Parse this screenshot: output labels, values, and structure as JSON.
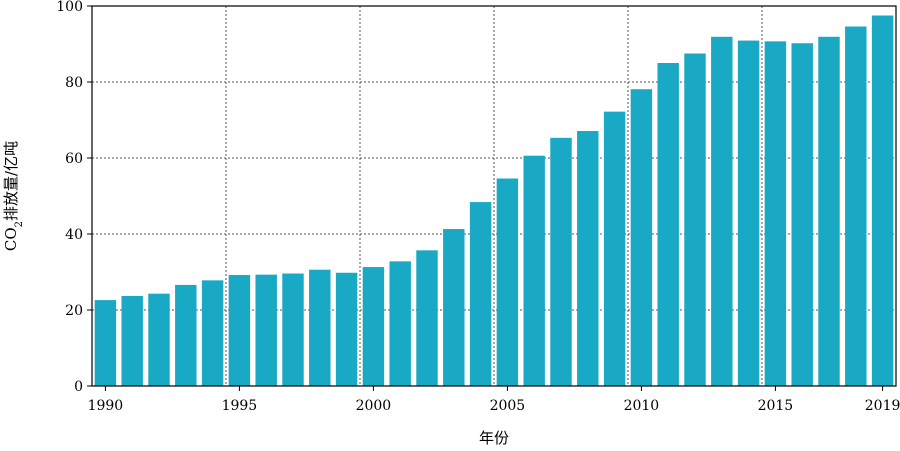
{
  "chart_data": {
    "type": "bar",
    "title": "",
    "xlabel": "年份",
    "ylabel_parts": {
      "pre": "CO",
      "sub": "2",
      "post": "排放量/亿吨"
    },
    "ylim": [
      0,
      100
    ],
    "yticks": [
      0,
      20,
      40,
      60,
      80,
      100
    ],
    "xticks": [
      "1990",
      "1995",
      "2000",
      "2005",
      "2010",
      "2015",
      "2019"
    ],
    "grid": true,
    "bar_color": "#1aa9c5",
    "categories": [
      "1990",
      "1991",
      "1992",
      "1993",
      "1994",
      "1995",
      "1996",
      "1997",
      "1998",
      "1999",
      "2000",
      "2001",
      "2002",
      "2003",
      "2004",
      "2005",
      "2006",
      "2007",
      "2008",
      "2009",
      "2010",
      "2011",
      "2012",
      "2013",
      "2014",
      "2015",
      "2016",
      "2017",
      "2018",
      "2019"
    ],
    "values": [
      22.6,
      23.7,
      24.3,
      26.6,
      27.8,
      29.2,
      29.3,
      29.6,
      30.6,
      29.8,
      31.3,
      32.8,
      35.7,
      41.3,
      48.4,
      54.6,
      60.6,
      65.3,
      67.1,
      72.2,
      78.1,
      85.0,
      87.5,
      91.9,
      90.9,
      90.7,
      90.2,
      91.9,
      94.6,
      97.5
    ]
  }
}
